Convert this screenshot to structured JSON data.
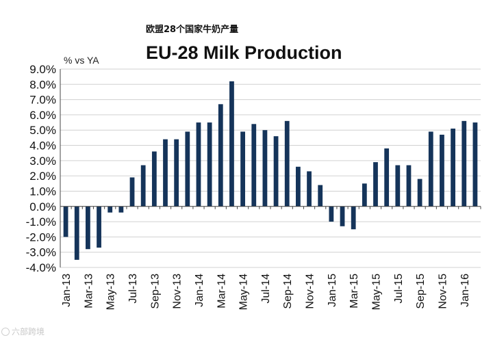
{
  "header": {
    "cn_title": "欧盟28个国家牛奶产量",
    "title": "EU-28 Milk Production",
    "unit_label": "% vs YA"
  },
  "watermark": {
    "text": "六部跨境",
    "icon": "circle-logo-icon"
  },
  "colors": {
    "bar": "#15345a",
    "grid": "#d0d0d0",
    "axis": "#444444"
  },
  "chart_data": {
    "type": "bar",
    "title": "EU-28 Milk Production",
    "ylabel": "% vs YA",
    "xlabel": "",
    "ylim": [
      -4,
      9
    ],
    "ytick_step": 1,
    "ytick_labels": [
      "9.0%",
      "8.0%",
      "7.0%",
      "6.0%",
      "5.0%",
      "4.0%",
      "3.0%",
      "2.0%",
      "1.0%",
      "0.0%",
      "-1.0%",
      "-2.0%",
      "-3.0%",
      "-4.0%"
    ],
    "grid": true,
    "categories": [
      "Jan-13",
      "Feb-13",
      "Mar-13",
      "Apr-13",
      "May-13",
      "Jun-13",
      "Jul-13",
      "Aug-13",
      "Sep-13",
      "Oct-13",
      "Nov-13",
      "Dec-13",
      "Jan-14",
      "Feb-14",
      "Mar-14",
      "Apr-14",
      "May-14",
      "Jun-14",
      "Jul-14",
      "Aug-14",
      "Sep-14",
      "Oct-14",
      "Nov-14",
      "Dec-14",
      "Jan-15",
      "Feb-15",
      "Mar-15",
      "Apr-15",
      "May-15",
      "Jun-15",
      "Jul-15",
      "Aug-15",
      "Sep-15",
      "Oct-15",
      "Nov-15",
      "Dec-15",
      "Jan-16",
      "Feb-16"
    ],
    "tick_labels_shown": [
      "Jan-13",
      "",
      "Mar-13",
      "",
      "May-13",
      "",
      "Jul-13",
      "",
      "Sep-13",
      "",
      "Nov-13",
      "",
      "Jan-14",
      "",
      "Mar-14",
      "",
      "May-14",
      "",
      "Jul-14",
      "",
      "Sep-14",
      "",
      "Nov-14",
      "",
      "Jan-15",
      "",
      "Mar-15",
      "",
      "May-15",
      "",
      "Jul-15",
      "",
      "Sep-15",
      "",
      "Nov-15",
      "",
      "Jan-16",
      ""
    ],
    "values": [
      -2.0,
      -3.5,
      -2.8,
      -2.7,
      -0.4,
      -0.4,
      1.9,
      2.7,
      3.6,
      4.4,
      4.4,
      4.9,
      5.5,
      5.5,
      6.7,
      8.2,
      4.9,
      5.4,
      5.0,
      4.6,
      5.6,
      2.6,
      2.3,
      1.4,
      -1.0,
      -1.3,
      -1.5,
      1.5,
      2.9,
      3.8,
      2.7,
      2.7,
      1.8,
      4.9,
      4.7,
      5.1,
      5.6,
      5.5
    ]
  }
}
